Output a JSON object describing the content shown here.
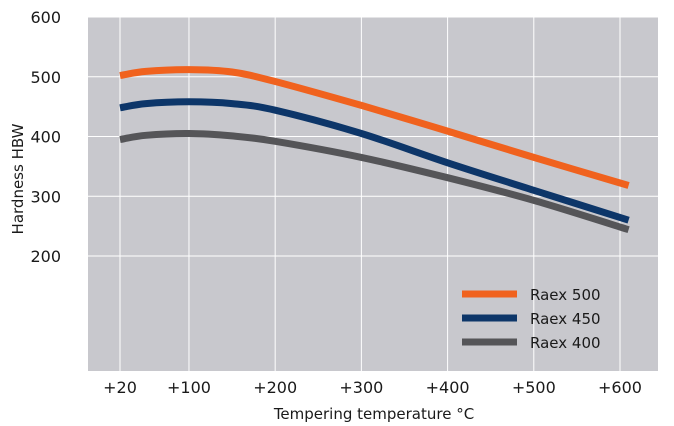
{
  "chart_data": {
    "type": "line",
    "xlabel": "Tempering temperature °C",
    "ylabel": "Hardness HBW",
    "x_ticks": [
      {
        "value": 20,
        "label": "+20"
      },
      {
        "value": 100,
        "label": "+100"
      },
      {
        "value": 200,
        "label": "+200"
      },
      {
        "value": 300,
        "label": "+300"
      },
      {
        "value": 400,
        "label": "+400"
      },
      {
        "value": 500,
        "label": "+500"
      },
      {
        "value": 600,
        "label": "+600"
      }
    ],
    "y_ticks": [
      {
        "value": 200,
        "label": "200"
      },
      {
        "value": 300,
        "label": "300"
      },
      {
        "value": 400,
        "label": "400"
      },
      {
        "value": 500,
        "label": "500"
      },
      {
        "value": 600,
        "label": "600"
      }
    ],
    "ylim": [
      0,
      600
    ],
    "grid": true,
    "legend_position": "bottom-right",
    "background_color": "#c8c8cd",
    "series": [
      {
        "name": "Raex 500",
        "color": "#f0621e",
        "x": [
          20,
          50,
          100,
          150,
          200,
          300,
          400,
          500,
          610
        ],
        "y": [
          502,
          509,
          512,
          508,
          492,
          452,
          409,
          365,
          318
        ]
      },
      {
        "name": "Raex 450",
        "color": "#0d3669",
        "x": [
          20,
          50,
          100,
          150,
          200,
          300,
          400,
          500,
          610
        ],
        "y": [
          448,
          455,
          458,
          455,
          444,
          405,
          356,
          310,
          260
        ]
      },
      {
        "name": "Raex 400",
        "color": "#555558",
        "x": [
          20,
          50,
          100,
          150,
          200,
          300,
          400,
          500,
          610
        ],
        "y": [
          395,
          402,
          405,
          401,
          392,
          365,
          331,
          293,
          244
        ]
      }
    ]
  }
}
